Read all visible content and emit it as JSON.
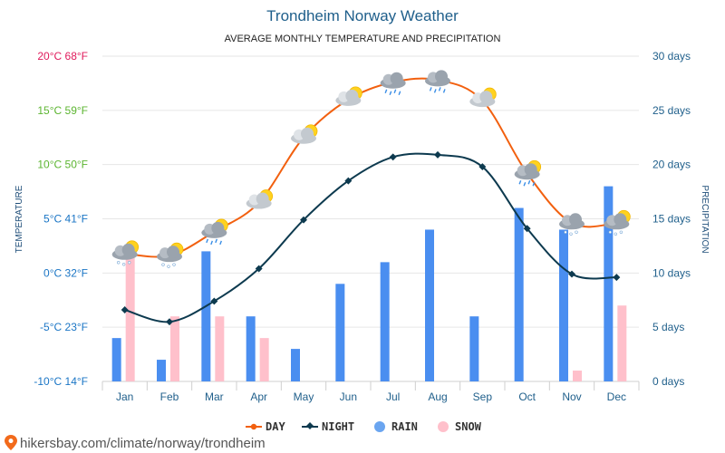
{
  "chart_data": {
    "type": "line+bar",
    "title": "Trondheim Norway Weather",
    "subtitle": "AVERAGE MONTHLY TEMPERATURE AND PRECIPITATION",
    "ylabel_left": "TEMPERATURE",
    "ylabel_right": "PRECIPITATION",
    "categories": [
      "Jan",
      "Feb",
      "Mar",
      "Apr",
      "May",
      "Jun",
      "Jul",
      "Aug",
      "Sep",
      "Oct",
      "Nov",
      "Dec"
    ],
    "temp_ylim": [
      -10,
      20
    ],
    "precip_ylim": [
      0,
      30
    ],
    "temp_ticks": [
      {
        "value": 20,
        "label": "20°C 68°F"
      },
      {
        "value": 15,
        "label": "15°C 59°F"
      },
      {
        "value": 10,
        "label": "10°C 50°F"
      },
      {
        "value": 5,
        "label": "5°C 41°F"
      },
      {
        "value": 0,
        "label": "0°C 32°F"
      },
      {
        "value": -5,
        "label": "-5°C 23°F"
      },
      {
        "value": -10,
        "label": "-10°C 14°F"
      }
    ],
    "precip_ticks": [
      {
        "value": 30,
        "label": "30 days"
      },
      {
        "value": 25,
        "label": "25 days"
      },
      {
        "value": 20,
        "label": "20 days"
      },
      {
        "value": 15,
        "label": "15 days"
      },
      {
        "value": 10,
        "label": "10 days"
      },
      {
        "value": 5,
        "label": "5 days"
      },
      {
        "value": 0,
        "label": "0 days"
      }
    ],
    "series": [
      {
        "name": "DAY",
        "type": "line",
        "color": "#f2600f",
        "values": [
          1.8,
          1.6,
          3.8,
          6.5,
          12.5,
          16.0,
          17.6,
          17.8,
          15.9,
          9.2,
          4.6,
          4.6
        ]
      },
      {
        "name": "NIGHT",
        "type": "line",
        "color": "#0d3a4f",
        "values": [
          -3.4,
          -4.5,
          -2.6,
          0.4,
          4.9,
          8.5,
          10.7,
          10.9,
          9.8,
          4.1,
          -0.1,
          -0.4
        ]
      },
      {
        "name": "RAIN",
        "type": "bar",
        "color": "#4a8ef0",
        "legend_color": "#6aa5f0",
        "values": [
          4,
          2,
          12,
          6,
          3,
          9,
          11,
          14,
          6,
          16,
          14,
          18
        ]
      },
      {
        "name": "SNOW",
        "type": "bar",
        "color": "#ffc0cb",
        "values": [
          12,
          6,
          6,
          4,
          0,
          0,
          0,
          0,
          0,
          0,
          1,
          7
        ]
      }
    ],
    "weather_icons": [
      "cloud-snow-sun-icon",
      "cloud-snow-sun-icon",
      "cloud-rain-sun-icon",
      "cloud-sun-icon",
      "cloud-sun-icon",
      "cloud-sun-icon",
      "cloud-rain-icon",
      "cloud-rain-icon",
      "cloud-sun-icon",
      "cloud-rain-sun-icon",
      "cloud-snow-icon",
      "cloud-snow-sun-icon"
    ],
    "colors": {
      "left_axis_top": "#e0195b",
      "left_axis_mid": "#5cb531",
      "left_axis_low": "#1a75c5",
      "right_axis": "#1f5f8b",
      "grid": "#e6e6e6"
    }
  },
  "source": "hikersbay.com/climate/norway/trondheim"
}
